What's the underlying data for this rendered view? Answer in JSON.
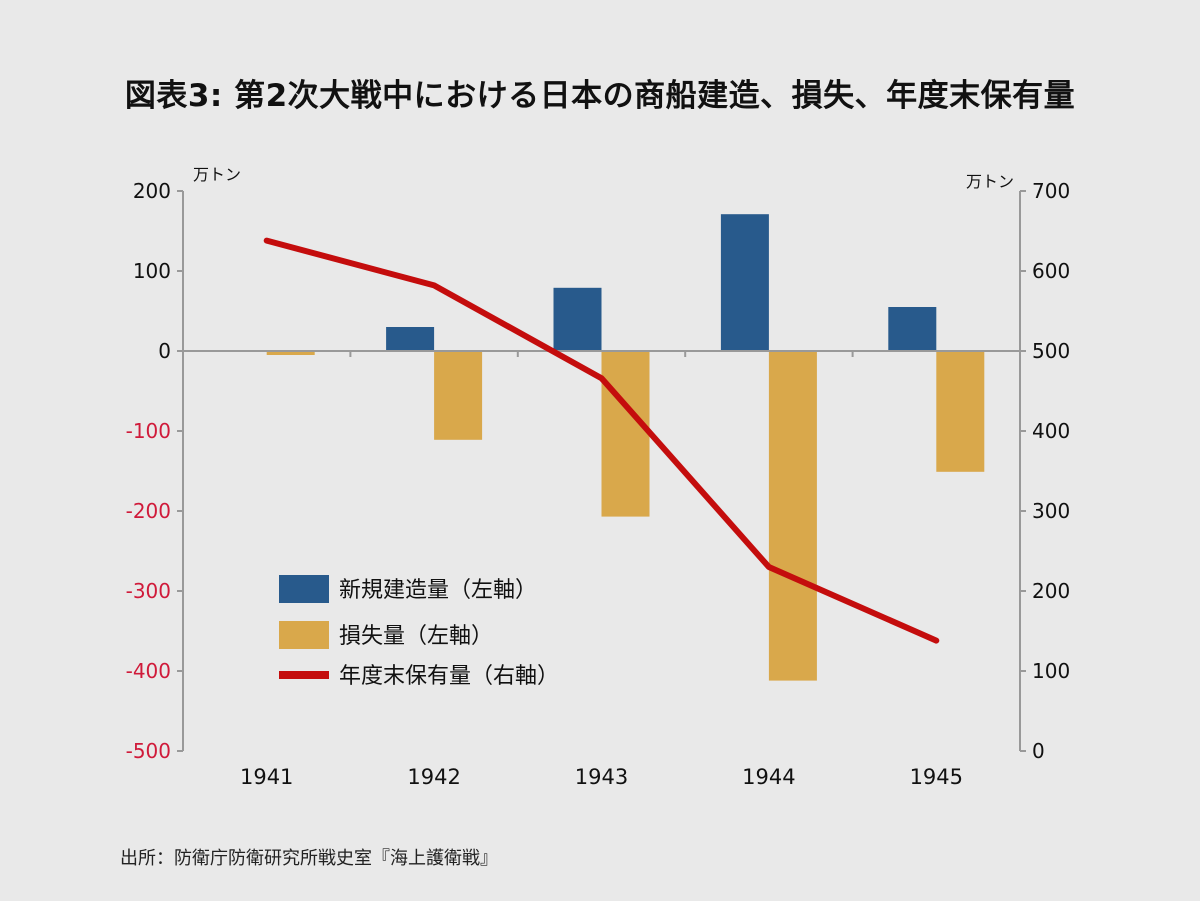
{
  "title": "図表3: 第2次大戦中における日本の商船建造、損失、年度末保有量",
  "source": "出所：防衛庁防衛研究所戦史室『海上護衛戦』",
  "colors": {
    "background": "#e9e9e9",
    "construction": "#285a8c",
    "loss": "#d9a84b",
    "holding": "#c40d0d",
    "negative_tick": "#d01a3a",
    "axis": "#999999"
  },
  "chart_data": {
    "type": "bar",
    "categories": [
      "1941",
      "1942",
      "1943",
      "1944",
      "1945"
    ],
    "left_axis": {
      "unit": "万トン",
      "range": [
        -500,
        200
      ],
      "ticks": [
        "200",
        "100",
        "0",
        "-100",
        "-200",
        "-300",
        "-400",
        "-500"
      ]
    },
    "right_axis": {
      "unit": "万トン",
      "range": [
        0,
        700
      ],
      "ticks": [
        "700",
        "600",
        "500",
        "400",
        "300",
        "200",
        "100",
        "0"
      ]
    },
    "series": [
      {
        "name": "新規建造量（左軸）",
        "type": "bar",
        "axis": "left",
        "values": [
          0,
          30,
          79,
          171,
          55
        ]
      },
      {
        "name": "損失量（左軸）",
        "type": "bar",
        "axis": "left",
        "values": [
          -5,
          -111,
          -207,
          -412,
          -151
        ]
      },
      {
        "name": "年度末保有量（右軸）",
        "type": "line",
        "axis": "right",
        "values": [
          638,
          582,
          466,
          230,
          138
        ]
      }
    ],
    "legend_position": "lower-left"
  }
}
